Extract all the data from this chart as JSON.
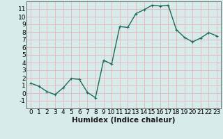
{
  "x": [
    0,
    1,
    2,
    3,
    4,
    5,
    6,
    7,
    8,
    9,
    10,
    11,
    12,
    13,
    14,
    15,
    16,
    17,
    18,
    19,
    20,
    21,
    22,
    23
  ],
  "y": [
    1.3,
    0.9,
    0.2,
    -0.2,
    0.7,
    1.9,
    1.8,
    0.1,
    -0.6,
    4.3,
    3.8,
    8.7,
    8.6,
    10.4,
    10.9,
    11.5,
    11.4,
    11.5,
    8.3,
    7.3,
    6.7,
    7.2,
    7.9,
    7.5
  ],
  "line_color": "#1a6b5a",
  "bg_color": "#d7ecea",
  "grid_color": "#e8b4b8",
  "xlabel": "Humidex (Indice chaleur)",
  "ylim": [
    -2,
    12
  ],
  "xlim": [
    -0.5,
    23.5
  ],
  "yticks": [
    -1,
    0,
    1,
    2,
    3,
    4,
    5,
    6,
    7,
    8,
    9,
    10,
    11
  ],
  "xticks": [
    0,
    1,
    2,
    3,
    4,
    5,
    6,
    7,
    8,
    9,
    10,
    11,
    12,
    13,
    14,
    15,
    16,
    17,
    18,
    19,
    20,
    21,
    22,
    23
  ],
  "marker": "+",
  "marker_size": 3,
  "linewidth": 1.0,
  "tick_fontsize": 6.5,
  "xlabel_fontsize": 7.5
}
